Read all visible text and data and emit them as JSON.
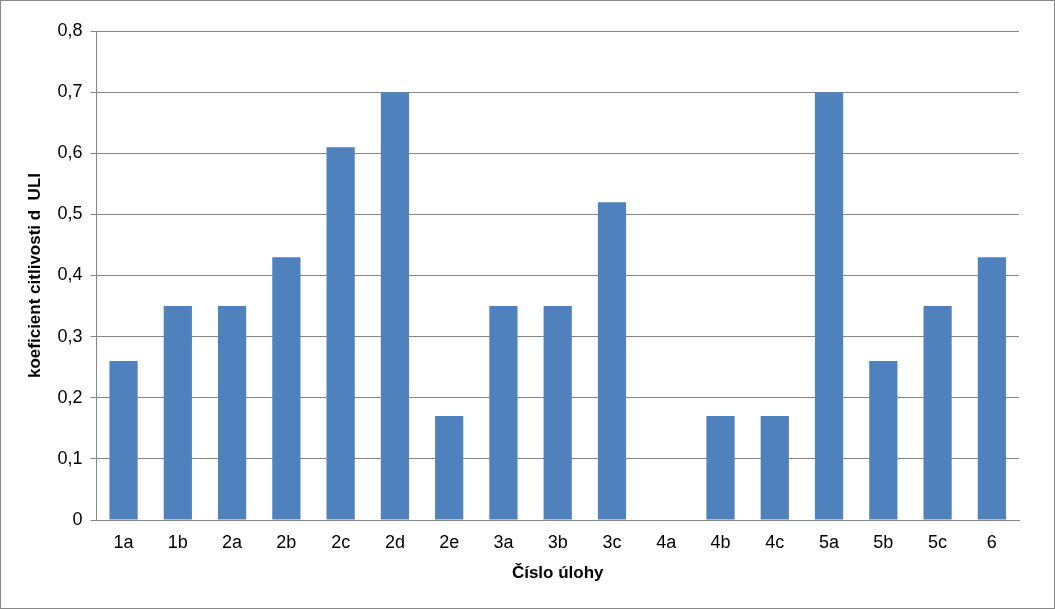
{
  "chart_data": {
    "type": "bar",
    "xlabel": "Číslo úlohy",
    "ylabel": "koeficient citlivosti d  ULI",
    "categories": [
      "1a",
      "1b",
      "2a",
      "2b",
      "2c",
      "2d",
      "2e",
      "3a",
      "3b",
      "3c",
      "4a",
      "4b",
      "4c",
      "5a",
      "5b",
      "5c",
      "6"
    ],
    "values": [
      0.26,
      0.35,
      0.35,
      0.43,
      0.61,
      0.7,
      0.17,
      0.35,
      0.35,
      0.52,
      0,
      0.17,
      0.17,
      0.7,
      0.26,
      0.35,
      0.43
    ],
    "color": "#4f81bd",
    "ylim": [
      0,
      0.8
    ],
    "yticks": [
      {
        "value": 0,
        "label": "0"
      },
      {
        "value": 0.1,
        "label": "0,1"
      },
      {
        "value": 0.2,
        "label": "0,2"
      },
      {
        "value": 0.3,
        "label": "0,3"
      },
      {
        "value": 0.4,
        "label": "0,4"
      },
      {
        "value": 0.5,
        "label": "0,5"
      },
      {
        "value": 0.6,
        "label": "0,6"
      },
      {
        "value": 0.7,
        "label": "0,7"
      },
      {
        "value": 0.8,
        "label": "0,8"
      }
    ],
    "grid": "y",
    "legend": false
  }
}
